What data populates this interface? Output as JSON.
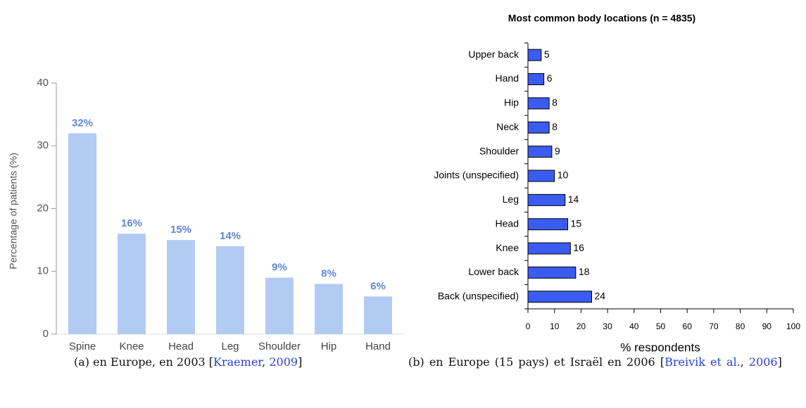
{
  "chart_data": [
    {
      "type": "bar",
      "ylabel": "Percentage of patients (%)",
      "categories": [
        "Spine",
        "Knee",
        "Head",
        "Leg",
        "Shoulder",
        "Hip",
        "Hand"
      ],
      "values": [
        32,
        16,
        15,
        14,
        9,
        8,
        6
      ],
      "value_labels": [
        "32%",
        "16%",
        "15%",
        "14%",
        "9%",
        "8%",
        "6%"
      ],
      "color": "#b2cbf3",
      "label_color": "#5f86d6",
      "ylim": [
        0,
        40
      ],
      "yticks": [
        0,
        10,
        20,
        30,
        40
      ],
      "grid": false
    },
    {
      "type": "hbar",
      "title": "Most common body locations (n = 4835)",
      "xlabel": "% respondents",
      "categories": [
        "Upper back",
        "Hand",
        "Hip",
        "Neck",
        "Shoulder",
        "Joints (unspecified)",
        "Leg",
        "Head",
        "Knee",
        "Lower back",
        "Back (unspecified)"
      ],
      "values": [
        5,
        6,
        8,
        8,
        9,
        10,
        14,
        15,
        16,
        18,
        24
      ],
      "color": "#3b5cf2",
      "xlim": [
        0,
        100
      ],
      "xticks": [
        0,
        10,
        20,
        30,
        40,
        50,
        60,
        70,
        80,
        90,
        100
      ],
      "grid": false
    }
  ],
  "captions": [
    {
      "parts": [
        {
          "text": "(a) en Europe, en 2003 ["
        },
        {
          "text": "Kraemer",
          "link": true
        },
        {
          "text": ", "
        },
        {
          "text": "2009",
          "link": true
        },
        {
          "text": "]"
        }
      ]
    },
    {
      "parts": [
        {
          "text": "(b) en Europe (15 pays) et Israël en 2006 ["
        },
        {
          "text": "Breivik et al.",
          "link": true
        },
        {
          "text": ", "
        },
        {
          "text": "2006",
          "link": true
        },
        {
          "text": "]"
        }
      ]
    }
  ]
}
